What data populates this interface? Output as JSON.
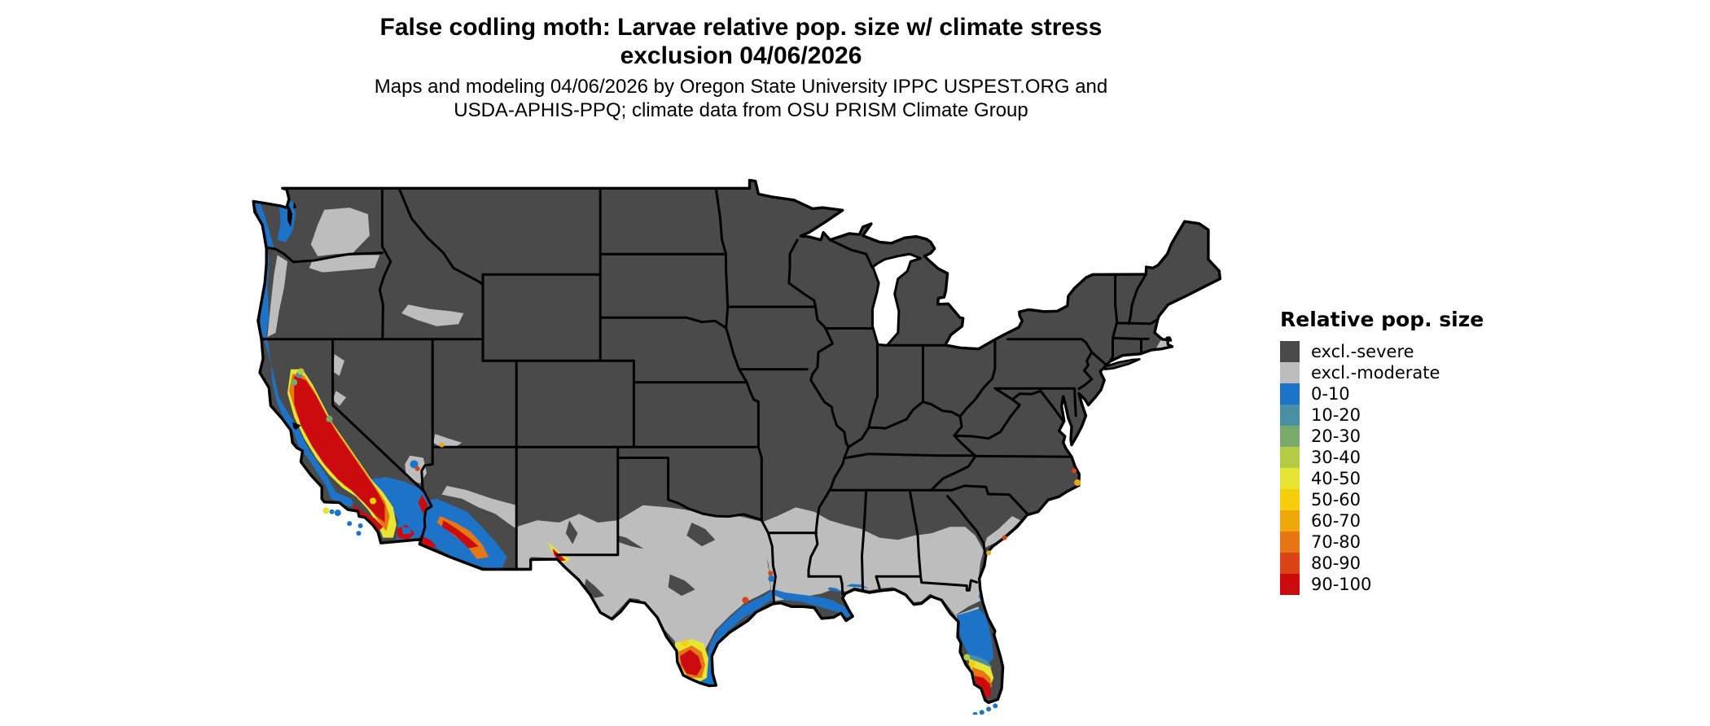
{
  "header": {
    "title_line1": "False codling moth: Larvae relative pop. size w/ climate stress",
    "title_line2": "exclusion 04/06/2026",
    "subtitle_line1": "Maps and modeling 04/06/2026 by Oregon State University IPPC USPEST.ORG and",
    "subtitle_line2": "USDA-APHIS-PPQ; climate data from OSU PRISM Climate Group"
  },
  "legend": {
    "title": "Relative pop. size",
    "items": [
      {
        "key": "sev",
        "label": "excl.-severe",
        "color": "#4a4a4a"
      },
      {
        "key": "mod",
        "label": "excl.-moderate",
        "color": "#bdbdbd"
      },
      {
        "key": "b0",
        "label": "0-10",
        "color": "#1c73c8"
      },
      {
        "key": "b10",
        "label": "10-20",
        "color": "#4a90a4"
      },
      {
        "key": "b20",
        "label": "20-30",
        "color": "#7aa96c"
      },
      {
        "key": "b30",
        "label": "30-40",
        "color": "#b3cb45"
      },
      {
        "key": "b40",
        "label": "40-50",
        "color": "#e7e434"
      },
      {
        "key": "b50",
        "label": "50-60",
        "color": "#f6cf0c"
      },
      {
        "key": "b60",
        "label": "60-70",
        "color": "#f0a70b"
      },
      {
        "key": "b70",
        "label": "70-80",
        "color": "#e67714"
      },
      {
        "key": "b80",
        "label": "80-90",
        "color": "#d94315"
      },
      {
        "key": "b90",
        "label": "90-100",
        "color": "#cb0b0e"
      }
    ]
  },
  "map": {
    "background": "#ffffff",
    "border_color": "#000000",
    "water_color": "#ffffff"
  }
}
